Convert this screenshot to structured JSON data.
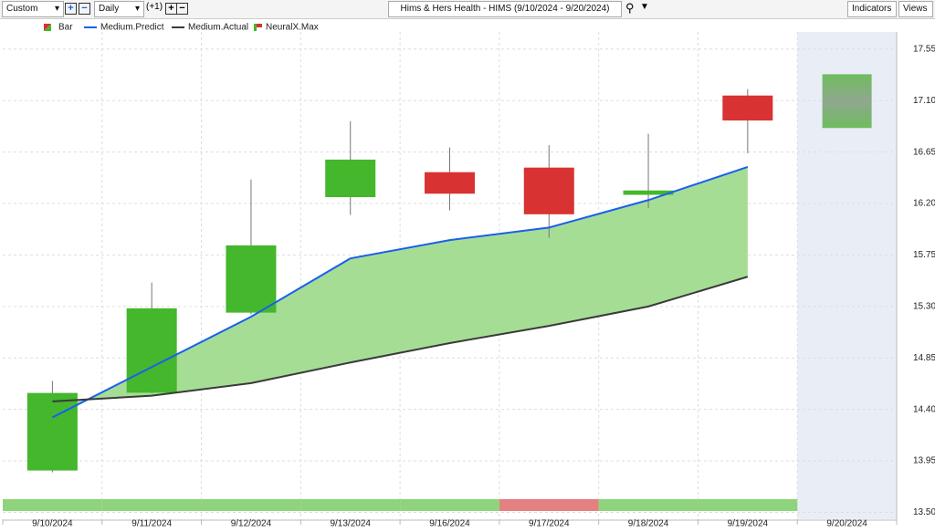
{
  "toolbar": {
    "range": "Custom",
    "period": "Daily",
    "offset": "(+1)",
    "indicators": "Indicators",
    "views": "Views"
  },
  "chart_data": {
    "type": "candlestick",
    "title": "Hims & Hers Health - HIMS (9/10/2024 - 9/20/2024)",
    "categories": [
      "9/10/2024",
      "9/11/2024",
      "9/12/2024",
      "9/13/2024",
      "9/16/2024",
      "9/17/2024",
      "9/18/2024",
      "9/19/2024",
      "9/20/2024"
    ],
    "candles": {
      "name": "Bar",
      "up_color": "#44b72c",
      "down_color": "#d93232",
      "open": [
        13.87,
        14.55,
        15.25,
        16.26,
        16.47,
        16.51,
        16.28,
        17.14,
        null
      ],
      "high": [
        14.65,
        15.51,
        16.41,
        16.92,
        16.69,
        16.71,
        16.81,
        17.2,
        null
      ],
      "low": [
        13.85,
        14.54,
        15.23,
        16.1,
        16.14,
        15.9,
        16.16,
        16.64,
        null
      ],
      "close": [
        14.54,
        15.28,
        15.83,
        16.58,
        16.29,
        16.11,
        16.31,
        16.93,
        null
      ]
    },
    "series": [
      {
        "name": "Medium.Predict",
        "color": "#1a5ff0",
        "values": [
          14.33,
          14.77,
          15.21,
          15.72,
          15.88,
          15.99,
          16.23,
          16.52,
          null
        ]
      },
      {
        "name": "Medium.Actual",
        "color": "#3a3a3a",
        "values": [
          14.47,
          14.52,
          14.63,
          14.81,
          14.98,
          15.13,
          15.3,
          15.56,
          null
        ]
      }
    ],
    "band_fill": "#a6dd95",
    "forecast": {
      "name": "NeuralX.Max",
      "color": "#8fa88f",
      "high": [
        null,
        null,
        null,
        null,
        null,
        null,
        null,
        null,
        17.33
      ],
      "low": [
        null,
        null,
        null,
        null,
        null,
        null,
        null,
        null,
        16.86
      ]
    },
    "signal_colors": [
      "#8ed47c",
      "#8ed47c",
      "#8ed47c",
      "#8ed47c",
      "#8ed47c",
      "#e38080",
      "#8ed47c",
      "#8ed47c",
      null
    ],
    "ylim": [
      13.44,
      17.7
    ],
    "yticks": [
      {
        "value": 13.5,
        "label": "13.50"
      },
      13.95,
      {
        "value": 14.4,
        "label": "14.40"
      },
      14.85,
      {
        "value": 15.3,
        "label": "15.30"
      },
      15.75,
      {
        "value": 16.2,
        "label": "16.20"
      },
      16.65,
      {
        "value": 17.1,
        "label": "17.10"
      },
      17.55
    ],
    "grid": true
  }
}
